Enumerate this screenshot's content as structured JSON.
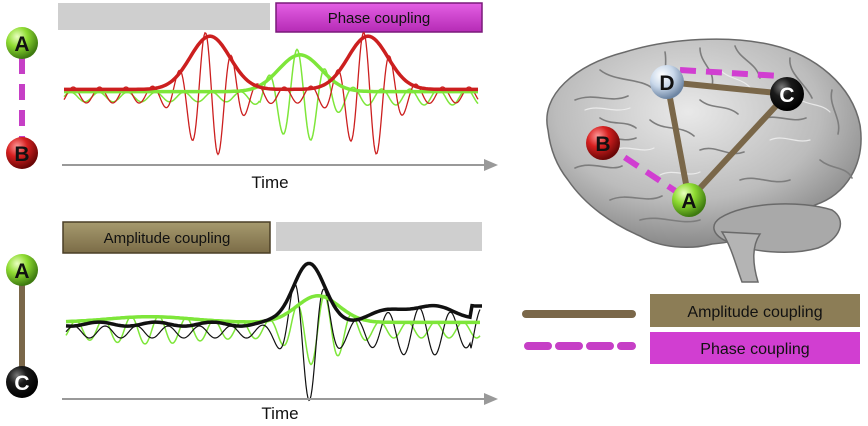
{
  "top_panel": {
    "badge_label": "Phase coupling",
    "x_label": "Time",
    "node_a": "A",
    "node_b": "B"
  },
  "bottom_panel": {
    "badge_label": "Amplitude coupling",
    "x_label": "Time",
    "node_a": "A",
    "node_c": "C"
  },
  "brain": {
    "nodes": [
      "D",
      "C",
      "B",
      "A"
    ]
  },
  "legend": {
    "amplitude_label": "Amplitude coupling",
    "phase_label": "Phase coupling"
  },
  "colors": {
    "amplitude": "#7a6749",
    "amplitude_box": "#8c7d56",
    "phase": "#c63fc6",
    "phase_box": "#d13ed1",
    "red": "#cc1f1f",
    "green": "#7ee63a",
    "gray_bar": "#cfcfcf"
  }
}
